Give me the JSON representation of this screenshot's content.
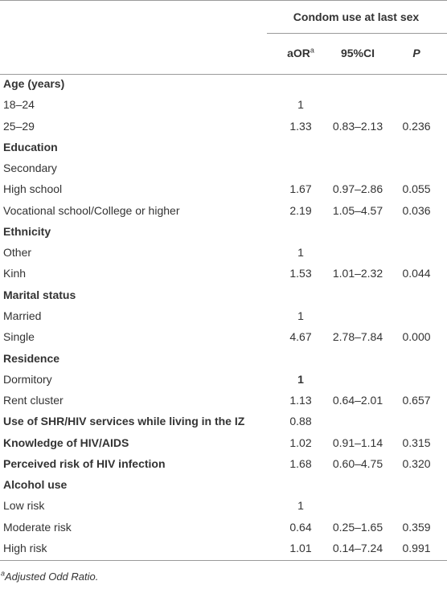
{
  "table": {
    "header": {
      "group": "Condom use at last sex",
      "columns": [
        {
          "text": "aOR",
          "sup": "a"
        },
        {
          "text": "95%CI"
        },
        {
          "text": "P"
        }
      ]
    },
    "groups": [
      {
        "label": "Age (years)",
        "rows": [
          [
            "18–24",
            "1"
          ],
          [
            "25–29",
            "1.33",
            "0.83–2.13",
            "0.236"
          ]
        ]
      },
      {
        "label": "Education",
        "rows": [
          [
            "Secondary"
          ],
          [
            "High school",
            "1.67",
            "0.97–2.86",
            "0.055"
          ],
          [
            "Vocational school/College or higher",
            "2.19",
            "1.05–4.57",
            "0.036"
          ]
        ]
      },
      {
        "label": "Ethnicity",
        "rows": [
          [
            "Other",
            "1"
          ],
          [
            "Kinh",
            "1.53",
            "1.01–2.32",
            "0.044"
          ]
        ]
      },
      {
        "label": "Marital status",
        "rows": [
          [
            "Married",
            "1"
          ],
          [
            "Single",
            "4.67",
            "2.78–7.84",
            "0.000"
          ]
        ]
      },
      {
        "label": "Residence",
        "rows": [
          [
            "Dormitory",
            "1"
          ],
          [
            "Rent cluster",
            "1.13",
            "0.64–2.01",
            "0.657"
          ]
        ]
      },
      {
        "label": "Use of SHR/HIV services while living in the IZ",
        "cells": [
          "0.88"
        ]
      },
      {
        "label": "Knowledge of HIV/AIDS",
        "cells": [
          "1.02",
          "0.91–1.14",
          "0.315"
        ]
      },
      {
        "label": "Perceived risk of HIV infection",
        "cells": [
          "1.68",
          "0.60–4.75",
          "0.320"
        ]
      },
      {
        "label": "Alcohol use",
        "rows": [
          [
            "Low risk",
            "1"
          ],
          [
            "Moderate risk",
            "0.64",
            "0.25–1.65",
            "0.359"
          ],
          [
            "High risk",
            "1.01",
            "0.14–7.24",
            "0.991"
          ]
        ]
      }
    ],
    "footnote": {
      "mark": "a",
      "text": "Adjusted Odd Ratio."
    }
  }
}
